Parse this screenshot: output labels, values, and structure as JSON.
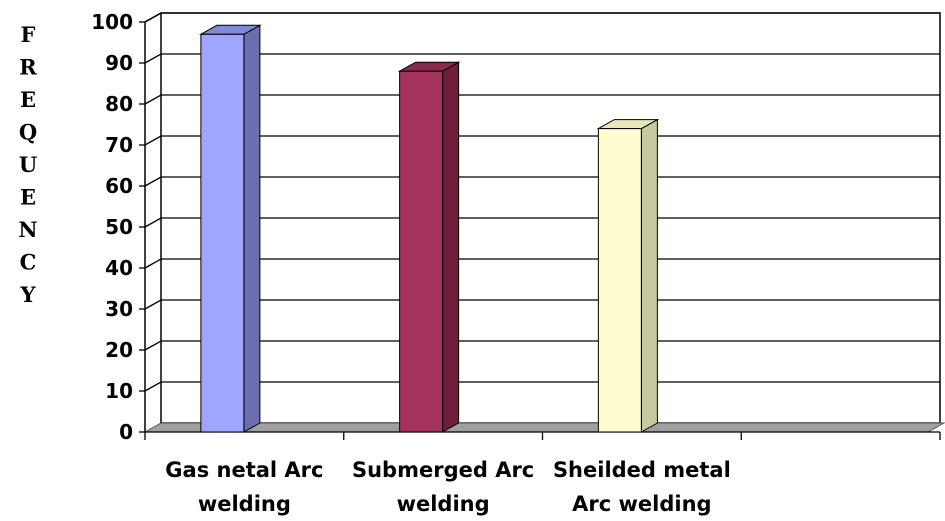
{
  "chart_data": {
    "type": "bar",
    "title": "",
    "ylabel": "FREQUENCY",
    "xlabel": "",
    "categories": [
      [
        "Gas netal Arc",
        "welding"
      ],
      [
        "Submerged Arc",
        "welding"
      ],
      [
        "Sheilded metal",
        "Arc welding"
      ],
      [
        "",
        ""
      ]
    ],
    "values": [
      97,
      88,
      74,
      null
    ],
    "ylim": [
      0,
      100
    ],
    "yticks": [
      "0",
      "10",
      "20",
      "30",
      "40",
      "50",
      "60",
      "70",
      "80",
      "90",
      "100"
    ],
    "grid": true,
    "legend": "none",
    "colors": {
      "bars": [
        {
          "front": "#9ea6ff",
          "side": "#6b6fb0",
          "top": "#8088d8"
        },
        {
          "front": "#a3335c",
          "side": "#6e1e3c",
          "top": "#8a2a4d"
        },
        {
          "front": "#fdfdd0",
          "side": "#c9c9a0",
          "top": "#e8e8b8"
        }
      ],
      "floor": "#a0a0a0",
      "grid": "#000000"
    }
  }
}
